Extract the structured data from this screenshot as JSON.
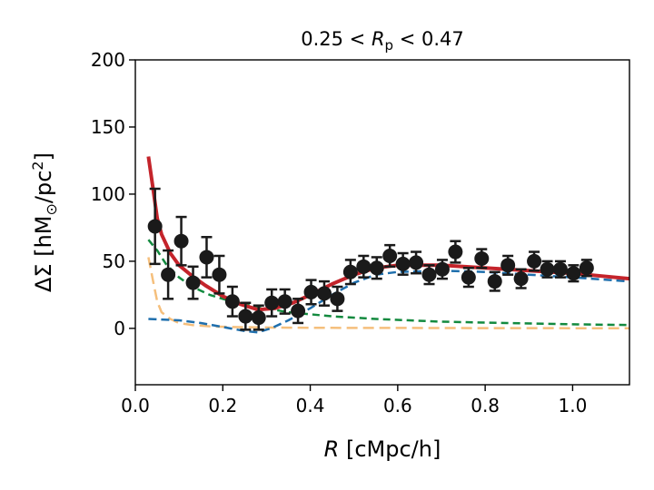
{
  "chart_data": {
    "type": "scatter",
    "title": {
      "pre": "0.25 < ",
      "var": "R",
      "sub": "p",
      "post": " < 0.47"
    },
    "xlabel": {
      "var": "R",
      "rest": " [cMpc/h]"
    },
    "ylabel": {
      "pre": "ΔΣ [hM",
      "sub": "⊙",
      "mid": "/pc",
      "sup": "2",
      "post": "]"
    },
    "xlim": [
      0.0,
      1.13
    ],
    "ylim": [
      -42,
      200
    ],
    "x_ticks": [
      {
        "v": 0.0,
        "label": "0.0"
      },
      {
        "v": 0.2,
        "label": "0.2"
      },
      {
        "v": 0.4,
        "label": "0.4"
      },
      {
        "v": 0.6,
        "label": "0.6"
      },
      {
        "v": 0.8,
        "label": "0.8"
      },
      {
        "v": 1.0,
        "label": "1.0"
      }
    ],
    "y_ticks": [
      {
        "v": 0,
        "label": "0"
      },
      {
        "v": 50,
        "label": "50"
      },
      {
        "v": 100,
        "label": "100"
      },
      {
        "v": 150,
        "label": "150"
      },
      {
        "v": 200,
        "label": "200"
      }
    ],
    "grid": false,
    "points": [
      {
        "x": 0.045,
        "y": 76,
        "err": 28
      },
      {
        "x": 0.075,
        "y": 40,
        "err": 18
      },
      {
        "x": 0.105,
        "y": 65,
        "err": 18
      },
      {
        "x": 0.132,
        "y": 34,
        "err": 12
      },
      {
        "x": 0.163,
        "y": 53,
        "err": 15
      },
      {
        "x": 0.192,
        "y": 40,
        "err": 14
      },
      {
        "x": 0.222,
        "y": 20,
        "err": 11
      },
      {
        "x": 0.252,
        "y": 9,
        "err": 10
      },
      {
        "x": 0.282,
        "y": 8,
        "err": 9
      },
      {
        "x": 0.312,
        "y": 19,
        "err": 10
      },
      {
        "x": 0.342,
        "y": 20,
        "err": 9
      },
      {
        "x": 0.372,
        "y": 13,
        "err": 9
      },
      {
        "x": 0.402,
        "y": 27,
        "err": 9
      },
      {
        "x": 0.432,
        "y": 26,
        "err": 9
      },
      {
        "x": 0.462,
        "y": 22,
        "err": 9
      },
      {
        "x": 0.492,
        "y": 42,
        "err": 9
      },
      {
        "x": 0.522,
        "y": 46,
        "err": 8
      },
      {
        "x": 0.552,
        "y": 45,
        "err": 8
      },
      {
        "x": 0.582,
        "y": 54,
        "err": 8
      },
      {
        "x": 0.612,
        "y": 48,
        "err": 8
      },
      {
        "x": 0.642,
        "y": 49,
        "err": 8
      },
      {
        "x": 0.672,
        "y": 40,
        "err": 7
      },
      {
        "x": 0.702,
        "y": 44,
        "err": 7
      },
      {
        "x": 0.732,
        "y": 57,
        "err": 8
      },
      {
        "x": 0.762,
        "y": 38,
        "err": 7
      },
      {
        "x": 0.792,
        "y": 52,
        "err": 7
      },
      {
        "x": 0.822,
        "y": 35,
        "err": 7
      },
      {
        "x": 0.852,
        "y": 47,
        "err": 7
      },
      {
        "x": 0.882,
        "y": 37,
        "err": 7
      },
      {
        "x": 0.912,
        "y": 50,
        "err": 7
      },
      {
        "x": 0.942,
        "y": 44,
        "err": 6
      },
      {
        "x": 0.972,
        "y": 44,
        "err": 6
      },
      {
        "x": 1.002,
        "y": 41,
        "err": 6
      },
      {
        "x": 1.032,
        "y": 45,
        "err": 6
      }
    ],
    "curves": [
      {
        "color": "#f5bf7c",
        "dash": "12,6",
        "width": 2.5,
        "x": [
          0.03,
          0.04,
          0.05,
          0.06,
          0.08,
          0.1,
          0.13,
          0.17,
          0.22,
          0.28,
          0.35,
          0.45,
          0.6,
          0.8,
          1.0,
          1.13
        ],
        "y": [
          53,
          36,
          20,
          12,
          7,
          4,
          2.5,
          1.5,
          1.0,
          0.7,
          0.5,
          0.4,
          0.3,
          0.2,
          0.1,
          0.1
        ]
      },
      {
        "color": "#1f6fad",
        "dash": "9,5",
        "width": 2.5,
        "x": [
          0.03,
          0.1,
          0.15,
          0.2,
          0.25,
          0.28,
          0.31,
          0.35,
          0.4,
          0.45,
          0.5,
          0.55,
          0.6,
          0.7,
          0.8,
          0.9,
          1.0,
          1.13
        ],
        "y": [
          7,
          6,
          4,
          1,
          -2,
          -3,
          0,
          6,
          15,
          25,
          34,
          40,
          42,
          43,
          42,
          40,
          38,
          35
        ]
      },
      {
        "color": "#138a3f",
        "dash": "8,5",
        "width": 2.5,
        "x": [
          0.03,
          0.05,
          0.07,
          0.1,
          0.13,
          0.17,
          0.22,
          0.28,
          0.35,
          0.45,
          0.55,
          0.7,
          0.85,
          1.0,
          1.13
        ],
        "y": [
          66,
          58,
          48,
          38,
          31,
          25,
          20,
          16,
          12,
          9,
          7,
          5,
          4,
          3,
          2.5
        ]
      },
      {
        "color": "#c4242b",
        "dash": "",
        "width": 4,
        "x": [
          0.03,
          0.04,
          0.05,
          0.06,
          0.08,
          0.1,
          0.13,
          0.16,
          0.2,
          0.24,
          0.28,
          0.32,
          0.36,
          0.4,
          0.45,
          0.5,
          0.55,
          0.6,
          0.65,
          0.7,
          0.8,
          0.9,
          1.0,
          1.13
        ],
        "y": [
          128,
          105,
          82,
          70,
          56,
          47,
          39,
          32,
          24,
          18,
          14,
          15,
          19,
          25,
          33,
          40,
          45,
          47,
          47,
          47,
          45,
          43,
          41,
          37
        ]
      }
    ]
  }
}
